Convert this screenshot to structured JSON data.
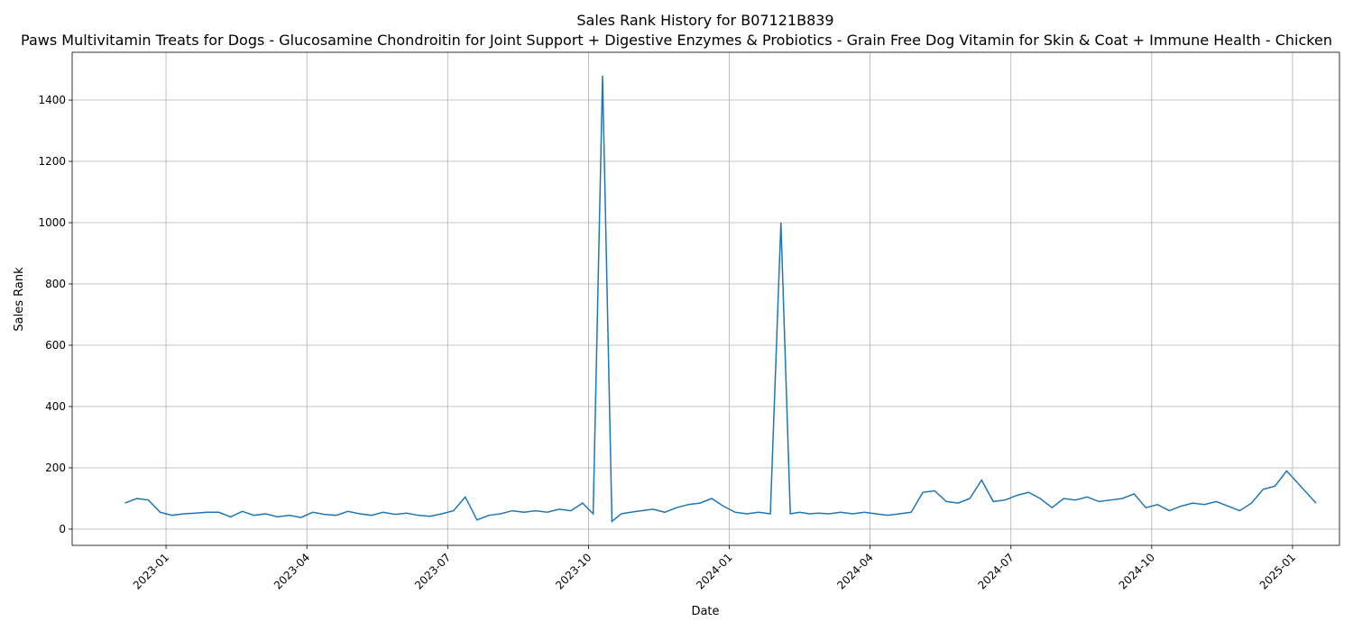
{
  "chart_data": {
    "type": "line",
    "title": "Sales Rank History for B07121B839",
    "subtitle": "Paws Multivitamin Treats for Dogs - Glucosamine Chondroitin for Joint Support + Digestive Enzymes & Probiotics - Grain Free Dog Vitamin for Skin & Coat + Immune Health - Chicken",
    "x_label": "Date",
    "y_label": "Sales Rank",
    "x": [
      "2022-12",
      "2022-12",
      "2022-12",
      "2022-12",
      "2023-01",
      "2023-01",
      "2023-01",
      "2023-01",
      "2023-02",
      "2023-02",
      "2023-02",
      "2023-02",
      "2023-03",
      "2023-03",
      "2023-03",
      "2023-03",
      "2023-04",
      "2023-04",
      "2023-04",
      "2023-04",
      "2023-05",
      "2023-05",
      "2023-05",
      "2023-05",
      "2023-06",
      "2023-06",
      "2023-06",
      "2023-06",
      "2023-07",
      "2023-07",
      "2023-07",
      "2023-07",
      "2023-08",
      "2023-08",
      "2023-08",
      "2023-08",
      "2023-09",
      "2023-09",
      "2023-09",
      "2023-09",
      "2023-10",
      "2023-10",
      "2023-10",
      "2023-10",
      "2023-10",
      "2023-11",
      "2023-11",
      "2023-11",
      "2023-11",
      "2023-12",
      "2023-12",
      "2023-12",
      "2023-12",
      "2024-01",
      "2024-01",
      "2024-01",
      "2024-01",
      "2024-02",
      "2024-02",
      "2024-02",
      "2024-02",
      "2024-02",
      "2024-03",
      "2024-03",
      "2024-03",
      "2024-03",
      "2024-04",
      "2024-04",
      "2024-04",
      "2024-04",
      "2024-05",
      "2024-05",
      "2024-05",
      "2024-05",
      "2024-06",
      "2024-06",
      "2024-06",
      "2024-06",
      "2024-07",
      "2024-07",
      "2024-07",
      "2024-07",
      "2024-08",
      "2024-08",
      "2024-08",
      "2024-08",
      "2024-09",
      "2024-09",
      "2024-09",
      "2024-09",
      "2024-10",
      "2024-10",
      "2024-10",
      "2024-10",
      "2024-11",
      "2024-11",
      "2024-11",
      "2024-11",
      "2024-12",
      "2024-12",
      "2024-12",
      "2024-12",
      "2025-01"
    ],
    "series": [
      {
        "name": "Sales Rank",
        "color": "#1f77b4",
        "values": [
          85,
          100,
          95,
          55,
          45,
          50,
          52,
          55,
          55,
          40,
          58,
          45,
          50,
          40,
          45,
          38,
          55,
          48,
          45,
          58,
          50,
          45,
          55,
          48,
          52,
          45,
          42,
          50,
          60,
          105,
          30,
          45,
          50,
          60,
          55,
          60,
          55,
          65,
          60,
          85,
          50,
          1480,
          25,
          50,
          55,
          60,
          65,
          55,
          70,
          80,
          85,
          100,
          75,
          55,
          50,
          55,
          50,
          1000,
          50,
          55,
          50,
          52,
          50,
          55,
          50,
          55,
          50,
          45,
          50,
          55,
          120,
          125,
          90,
          85,
          100,
          160,
          90,
          95,
          110,
          120,
          100,
          70,
          100,
          95,
          105,
          90,
          95,
          100,
          115,
          70,
          80,
          60,
          75,
          85,
          80,
          90,
          75,
          60,
          85,
          130,
          140,
          190,
          85
        ]
      }
    ],
    "xlim": [
      "2022-11",
      "2025-02"
    ],
    "xticks": [
      "2023-01",
      "2023-04",
      "2023-07",
      "2023-10",
      "2024-01",
      "2024-04",
      "2024-07",
      "2024-10",
      "2025-01"
    ],
    "ylim": [
      -53,
      1556
    ],
    "yticks": [
      0,
      200,
      400,
      600,
      800,
      1000,
      1200,
      1400
    ],
    "grid": true
  }
}
